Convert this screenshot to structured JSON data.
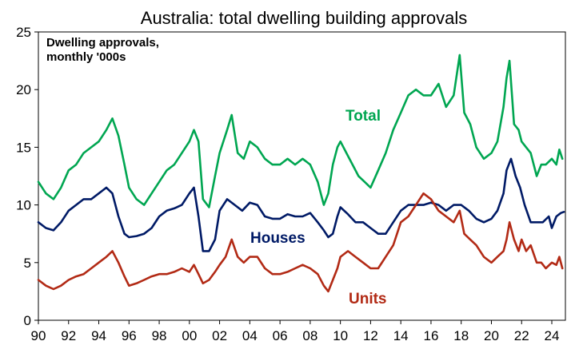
{
  "chart_data": {
    "type": "line",
    "title": "Australia: total dwelling building approvals",
    "annotation_lines": [
      "Dwelling approvals,",
      "monthly '000s"
    ],
    "x_unit": "year",
    "xlim": [
      1990,
      2024.9
    ],
    "x_ticks": [
      1990,
      1992,
      1994,
      1996,
      1998,
      2000,
      2002,
      2004,
      2006,
      2008,
      2010,
      2012,
      2014,
      2016,
      2018,
      2020,
      2022,
      2024
    ],
    "x_tick_labels": [
      "90",
      "92",
      "94",
      "96",
      "98",
      "00",
      "02",
      "04",
      "06",
      "08",
      "10",
      "12",
      "14",
      "16",
      "18",
      "20",
      "22",
      "24"
    ],
    "ylim": [
      0,
      25
    ],
    "y_ticks": [
      0,
      5,
      10,
      15,
      20,
      25
    ],
    "y_tick_labels": [
      "0",
      "5",
      "10",
      "15",
      "20",
      "25"
    ],
    "grid": false,
    "series": [
      {
        "name": "Total",
        "color": "#00a651",
        "x": [
          1990.0,
          1990.5,
          1991.0,
          1991.5,
          1992.0,
          1992.5,
          1993.0,
          1993.5,
          1994.0,
          1994.5,
          1994.9,
          1995.3,
          1995.7,
          1996.0,
          1996.5,
          1997.0,
          1997.5,
          1998.0,
          1998.5,
          1999.0,
          1999.5,
          2000.0,
          2000.3,
          2000.6,
          2000.9,
          2001.3,
          2001.7,
          2002.0,
          2002.5,
          2002.8,
          2003.2,
          2003.6,
          2004.0,
          2004.5,
          2005.0,
          2005.5,
          2006.0,
          2006.5,
          2007.0,
          2007.5,
          2008.0,
          2008.5,
          2008.9,
          2009.2,
          2009.5,
          2009.8,
          2010.0,
          2010.4,
          2010.8,
          2011.2,
          2011.6,
          2012.0,
          2012.5,
          2013.0,
          2013.5,
          2014.0,
          2014.5,
          2015.0,
          2015.5,
          2016.0,
          2016.5,
          2017.0,
          2017.5,
          2017.9,
          2018.2,
          2018.6,
          2019.0,
          2019.5,
          2020.0,
          2020.4,
          2020.8,
          2021.0,
          2021.2,
          2021.5,
          2021.8,
          2022.0,
          2022.3,
          2022.6,
          2023.0,
          2023.3,
          2023.6,
          2024.0,
          2024.3,
          2024.5,
          2024.7
        ],
        "values": [
          12.0,
          11.0,
          10.5,
          11.5,
          13.0,
          13.5,
          14.5,
          15.0,
          15.5,
          16.5,
          17.5,
          16.0,
          13.5,
          11.5,
          10.5,
          10.0,
          11.0,
          12.0,
          13.0,
          13.5,
          14.5,
          15.5,
          16.5,
          15.5,
          10.5,
          9.8,
          12.5,
          14.5,
          16.5,
          17.8,
          14.5,
          14.0,
          15.5,
          15.0,
          14.0,
          13.5,
          13.5,
          14.0,
          13.5,
          14.0,
          13.5,
          12.0,
          10.0,
          11.0,
          13.5,
          15.0,
          15.5,
          14.5,
          13.5,
          12.5,
          12.0,
          11.5,
          13.0,
          14.5,
          16.5,
          18.0,
          19.5,
          20.0,
          19.5,
          19.5,
          20.5,
          18.5,
          19.5,
          23.0,
          18.0,
          17.0,
          15.0,
          14.0,
          14.5,
          15.5,
          18.5,
          21.0,
          22.5,
          17.0,
          16.5,
          15.5,
          15.0,
          14.5,
          12.5,
          13.5,
          13.5,
          14.0,
          13.5,
          14.8,
          14.0
        ]
      },
      {
        "name": "Houses",
        "color": "#001a66",
        "x": [
          1990.0,
          1990.5,
          1991.0,
          1991.5,
          1992.0,
          1992.5,
          1993.0,
          1993.5,
          1994.0,
          1994.5,
          1994.9,
          1995.3,
          1995.7,
          1996.0,
          1996.5,
          1997.0,
          1997.5,
          1998.0,
          1998.5,
          1999.0,
          1999.5,
          2000.0,
          2000.3,
          2000.6,
          2000.9,
          2001.3,
          2001.7,
          2002.0,
          2002.5,
          2003.0,
          2003.5,
          2004.0,
          2004.5,
          2005.0,
          2005.5,
          2006.0,
          2006.5,
          2007.0,
          2007.5,
          2008.0,
          2008.5,
          2008.9,
          2009.2,
          2009.5,
          2009.8,
          2010.0,
          2010.5,
          2011.0,
          2011.5,
          2012.0,
          2012.5,
          2013.0,
          2013.5,
          2014.0,
          2014.5,
          2015.0,
          2015.5,
          2016.0,
          2016.5,
          2017.0,
          2017.5,
          2018.0,
          2018.5,
          2019.0,
          2019.5,
          2020.0,
          2020.4,
          2020.8,
          2021.0,
          2021.3,
          2021.6,
          2021.9,
          2022.2,
          2022.6,
          2023.0,
          2023.4,
          2023.8,
          2024.0,
          2024.3,
          2024.6,
          2024.8
        ],
        "values": [
          8.5,
          8.0,
          7.8,
          8.5,
          9.5,
          10.0,
          10.5,
          10.5,
          11.0,
          11.5,
          11.0,
          9.0,
          7.5,
          7.2,
          7.3,
          7.5,
          8.0,
          9.0,
          9.5,
          9.7,
          10.0,
          11.0,
          11.5,
          9.0,
          6.0,
          6.0,
          7.0,
          9.5,
          10.5,
          10.0,
          9.5,
          10.2,
          10.0,
          9.0,
          8.8,
          8.8,
          9.2,
          9.0,
          9.0,
          9.3,
          8.5,
          7.8,
          7.2,
          7.5,
          9.0,
          9.8,
          9.2,
          8.5,
          8.5,
          8.0,
          7.5,
          7.5,
          8.5,
          9.5,
          10.0,
          10.0,
          10.0,
          10.2,
          10.0,
          9.5,
          10.0,
          10.0,
          9.5,
          8.8,
          8.5,
          8.8,
          9.5,
          11.0,
          13.0,
          14.0,
          12.5,
          11.5,
          10.0,
          8.5,
          8.5,
          8.5,
          9.0,
          8.0,
          9.0,
          9.3,
          9.4
        ]
      },
      {
        "name": "Units",
        "color": "#b22a15",
        "x": [
          1990.0,
          1990.5,
          1991.0,
          1991.5,
          1992.0,
          1992.5,
          1993.0,
          1993.5,
          1994.0,
          1994.5,
          1994.9,
          1995.3,
          1995.7,
          1996.0,
          1996.5,
          1997.0,
          1997.5,
          1998.0,
          1998.5,
          1999.0,
          1999.5,
          2000.0,
          2000.3,
          2000.6,
          2000.9,
          2001.3,
          2001.7,
          2002.0,
          2002.4,
          2002.8,
          2003.2,
          2003.6,
          2004.0,
          2004.5,
          2005.0,
          2005.5,
          2006.0,
          2006.5,
          2007.0,
          2007.5,
          2008.0,
          2008.5,
          2008.9,
          2009.2,
          2009.5,
          2009.8,
          2010.0,
          2010.5,
          2011.0,
          2011.5,
          2012.0,
          2012.5,
          2013.0,
          2013.5,
          2014.0,
          2014.5,
          2015.0,
          2015.5,
          2016.0,
          2016.5,
          2017.0,
          2017.5,
          2017.9,
          2018.2,
          2018.6,
          2019.0,
          2019.5,
          2020.0,
          2020.4,
          2020.8,
          2021.0,
          2021.2,
          2021.5,
          2021.8,
          2022.0,
          2022.3,
          2022.6,
          2023.0,
          2023.3,
          2023.6,
          2024.0,
          2024.3,
          2024.5,
          2024.7
        ],
        "values": [
          3.5,
          3.0,
          2.7,
          3.0,
          3.5,
          3.8,
          4.0,
          4.5,
          5.0,
          5.5,
          6.0,
          5.0,
          3.8,
          3.0,
          3.2,
          3.5,
          3.8,
          4.0,
          4.0,
          4.2,
          4.5,
          4.2,
          4.8,
          4.0,
          3.2,
          3.5,
          4.2,
          4.8,
          5.5,
          7.0,
          5.5,
          5.0,
          5.5,
          5.5,
          4.5,
          4.0,
          4.0,
          4.2,
          4.5,
          4.8,
          4.5,
          4.0,
          3.0,
          2.5,
          3.5,
          4.5,
          5.5,
          6.0,
          5.5,
          5.0,
          4.5,
          4.5,
          5.5,
          6.5,
          8.5,
          9.0,
          10.0,
          11.0,
          10.5,
          9.5,
          9.0,
          8.5,
          9.5,
          7.5,
          7.0,
          6.5,
          5.5,
          5.0,
          5.5,
          6.0,
          7.0,
          8.5,
          7.0,
          6.0,
          7.0,
          6.0,
          6.5,
          5.0,
          5.0,
          4.5,
          5.0,
          4.8,
          5.5,
          4.5
        ]
      }
    ]
  }
}
